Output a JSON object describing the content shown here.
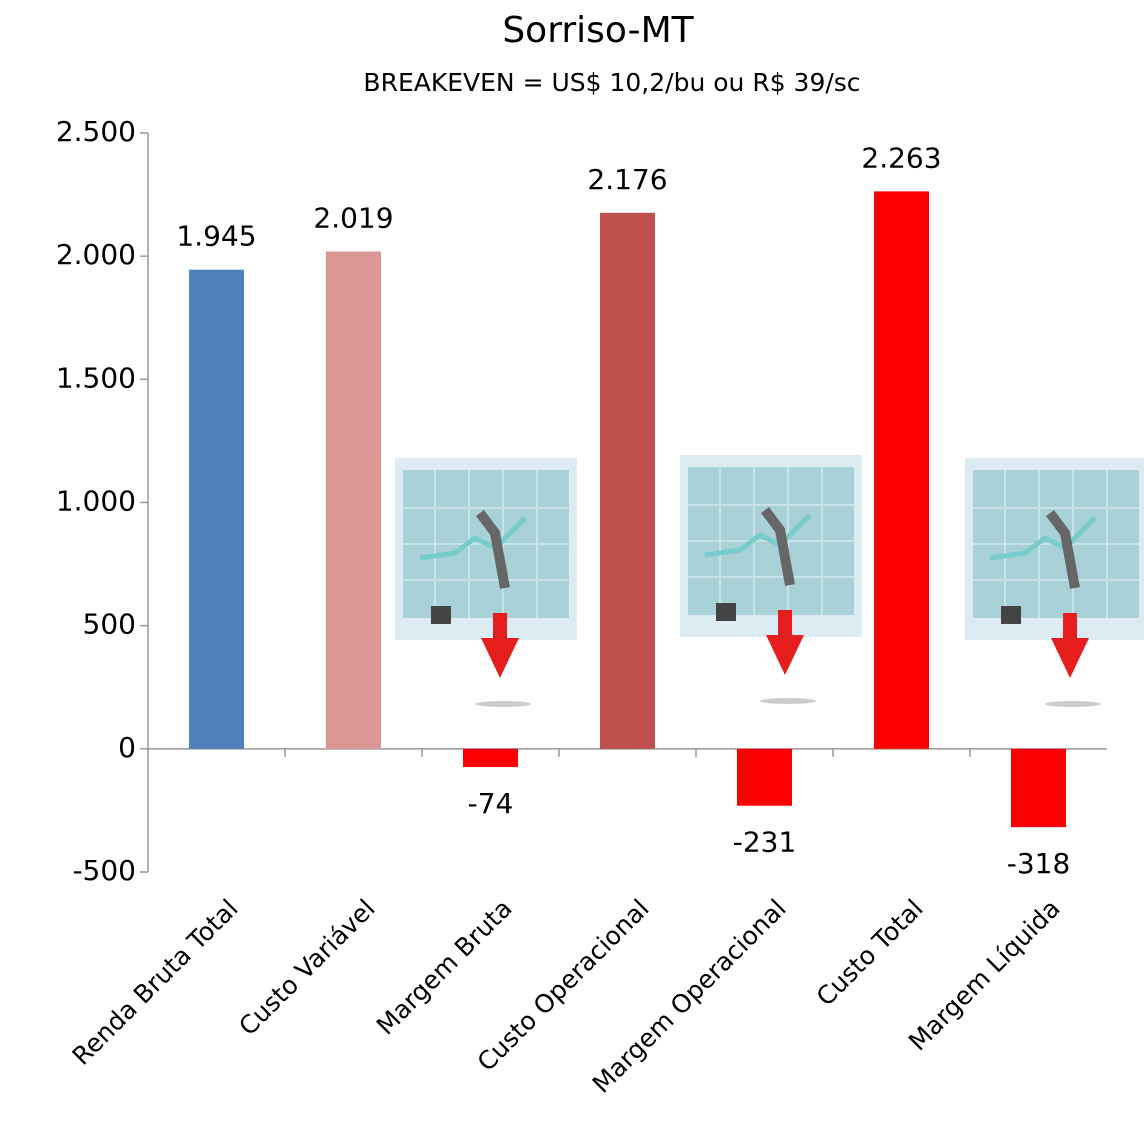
{
  "chart_data": {
    "type": "bar",
    "title": "Sorriso-MT",
    "subtitle": "BREAKEVEN = US$ 10,2/bu ou R$ 39/sc",
    "categories": [
      "Renda Bruta Total",
      "Custo Variável",
      "Margem Bruta",
      "Custo Operacional",
      "Margem Operacional",
      "Custo Total",
      "Margem Líquida"
    ],
    "values": [
      1945,
      2019,
      -74,
      2176,
      -231,
      2263,
      -318
    ],
    "value_labels": [
      "1.945",
      "2.019",
      "-74",
      "2.176",
      "-231",
      "2.263",
      "-318"
    ],
    "colors": [
      "#4f81bd",
      "#d99694",
      "#ff0000",
      "#c0504d",
      "#ff0000",
      "#ff0000",
      "#ff0000"
    ],
    "ylim": [
      -500,
      2500
    ],
    "yticks": [
      -500,
      0,
      500,
      {
        "value": 1000,
        "label": "1.000"
      },
      {
        "value": 1500,
        "label": "1.500"
      },
      {
        "value": 2000,
        "label": "2.000"
      },
      {
        "value": 2500,
        "label": "2.500"
      }
    ],
    "grid": false
  }
}
